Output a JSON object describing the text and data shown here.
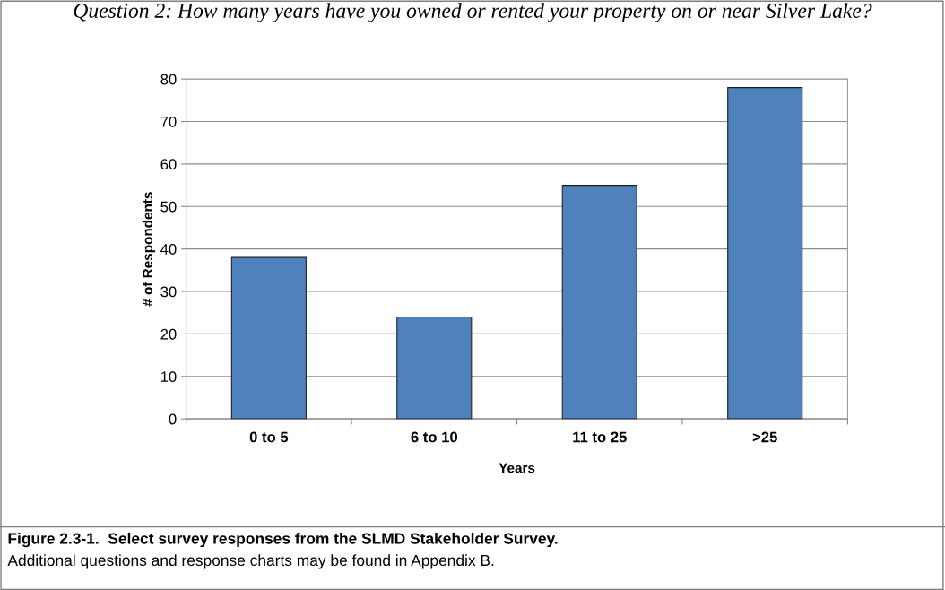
{
  "chart_data": {
    "type": "bar",
    "title": "Question 2: How many years have you owned or rented your property on or near Silver Lake?",
    "xlabel": "Years",
    "ylabel": "# of Respondents",
    "categories": [
      "0 to 5",
      "6 to 10",
      "11 to 25",
      ">25"
    ],
    "values": [
      38,
      24,
      55,
      78
    ],
    "color": "#4f81bd",
    "ylim": [
      0,
      80
    ],
    "yticks": [
      0,
      10,
      20,
      30,
      40,
      50,
      60,
      70,
      80
    ],
    "grid": "y",
    "annotations": [
      "Figure 2.3-1.  Select survey responses from the SLMD Stakeholder Survey.",
      "Additional questions and response charts may be found in Appendix B."
    ]
  }
}
